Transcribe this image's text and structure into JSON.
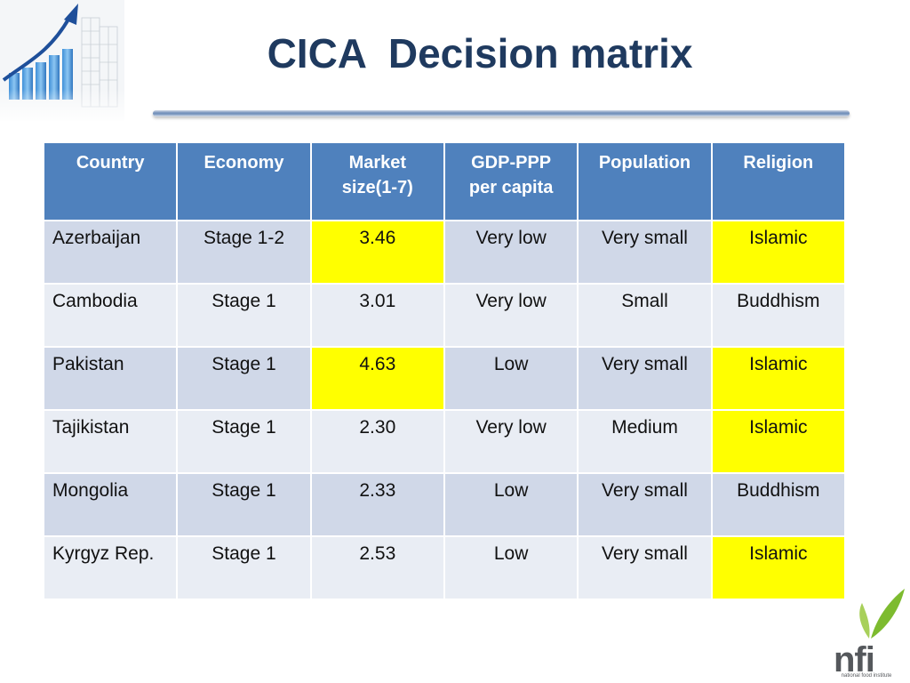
{
  "slide": {
    "title": "CICA  Decision matrix"
  },
  "table": {
    "headers": [
      "Country",
      "Economy",
      "Market size(1-7)",
      "GDP-PPP per capita",
      "Population",
      "Religion"
    ],
    "rows": [
      [
        "Azerbaijan",
        "Stage 1-2",
        "3.46",
        "Very low",
        "Very small",
        "Islamic"
      ],
      [
        "Cambodia",
        "Stage 1",
        "3.01",
        "Very low",
        "Small",
        "Buddhism"
      ],
      [
        "Pakistan",
        "Stage 1",
        "4.63",
        "Low",
        "Very small",
        "Islamic"
      ],
      [
        "Tajikistan",
        "Stage 1",
        "2.30",
        "Very low",
        "Medium",
        "Islamic"
      ],
      [
        "Mongolia",
        "Stage 1",
        "2.33",
        "Low",
        "Very small",
        "Buddhism"
      ],
      [
        "Kyrgyz Rep.",
        "Stage 1",
        "2.53",
        "Low",
        "Very small",
        "Islamic"
      ]
    ]
  },
  "logo": {
    "name": "nfi",
    "tagline": "national food institute"
  },
  "colors": {
    "title": "#1f3a5f",
    "header_bg": "#4f81bd",
    "row_odd": "#d0d8e8",
    "row_even": "#e9edf4",
    "highlight": "#ffff00",
    "leaf_green": "#8cc63f"
  },
  "icons": [
    "growth-chart-icon",
    "leaf-icon"
  ]
}
